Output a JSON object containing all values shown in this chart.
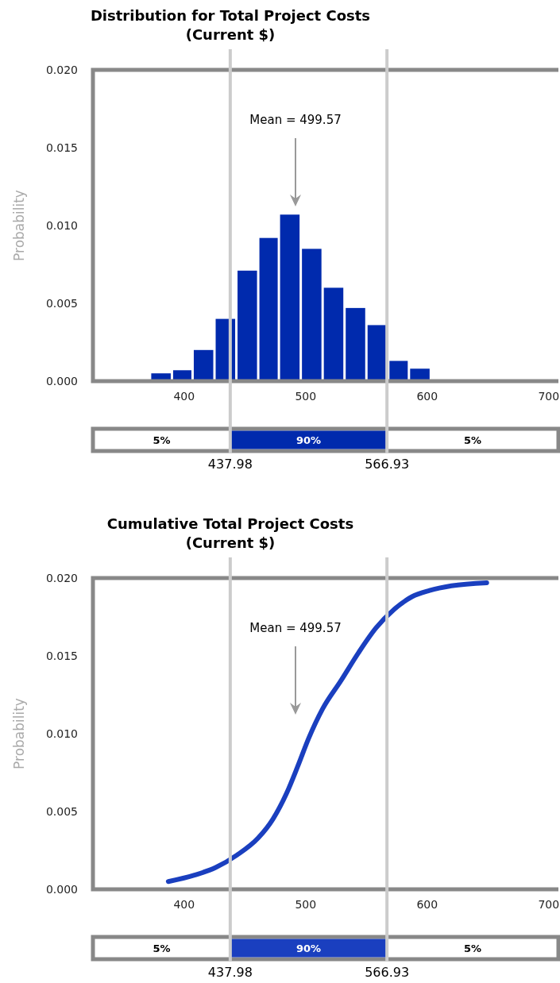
{
  "chart_data": [
    {
      "type": "histogram",
      "title": "Distribution for Total Project Costs",
      "subtitle": "(Current $)",
      "ylabel": "Probability",
      "bins": [
        372,
        390,
        407,
        425,
        443,
        461,
        478,
        496,
        514,
        532,
        550,
        568,
        585,
        603
      ],
      "values": [
        0.0005,
        0.0007,
        0.002,
        0.004,
        0.0071,
        0.0092,
        0.0107,
        0.0085,
        0.006,
        0.0047,
        0.0036,
        0.0013,
        0.0008
      ],
      "color": "#002aad",
      "xlim": [
        325,
        708
      ],
      "xticks": [
        400,
        500,
        600,
        700
      ],
      "ylim": [
        0,
        0.02
      ],
      "yticks": [
        {
          "value": 0,
          "label": "0.000"
        },
        {
          "value": 0.005,
          "label": "0.005"
        },
        {
          "value": 0.01,
          "label": "0.010"
        },
        {
          "value": 0.015,
          "label": "0.015"
        },
        {
          "value": 0.02,
          "label": "0.020"
        }
      ],
      "ref_lines": [
        {
          "axis": "x",
          "value": 437.98,
          "label": "437.98",
          "color": "#cccccc"
        },
        {
          "axis": "x",
          "value": 566.93,
          "label": "566.93",
          "color": "#cccccc"
        }
      ],
      "annotations": [
        "Mean = 499.57",
        "5%",
        "90%",
        "5%"
      ]
    },
    {
      "type": "line",
      "title": "Cumulative Total Project Costs",
      "subtitle": "(Current $)",
      "ylabel": "Probability",
      "x": [
        387,
        408,
        426,
        443.5,
        461,
        473,
        484.5,
        493.5,
        502.5,
        514,
        529,
        543.5,
        558,
        573,
        587.5,
        602,
        620,
        649
      ],
      "values": [
        0.0005,
        0.0009,
        0.0014,
        0.0022,
        0.0033,
        0.0045,
        0.0062,
        0.0079,
        0.0097,
        0.0116,
        0.0134,
        0.0152,
        0.0168,
        0.018,
        0.0188,
        0.0192,
        0.0195,
        0.0197
      ],
      "color": "#1a3fbf",
      "xlim": [
        325,
        708
      ],
      "xticks": [
        400,
        500,
        600,
        700
      ],
      "ylim": [
        0,
        0.02
      ],
      "yticks": [
        {
          "value": 0,
          "label": "0.000"
        },
        {
          "value": 0.005,
          "label": "0.005"
        },
        {
          "value": 0.01,
          "label": "0.010"
        },
        {
          "value": 0.015,
          "label": "0.015"
        },
        {
          "value": 0.02,
          "label": "0.020"
        }
      ],
      "ref_lines": [
        {
          "axis": "x",
          "value": 437.98,
          "label": "437.98",
          "color": "#cccccc"
        },
        {
          "axis": "x",
          "value": 566.93,
          "label": "566.93",
          "color": "#cccccc"
        }
      ],
      "annotations": [
        "Mean = 499.57",
        "5%",
        "90%",
        "5%"
      ]
    }
  ]
}
